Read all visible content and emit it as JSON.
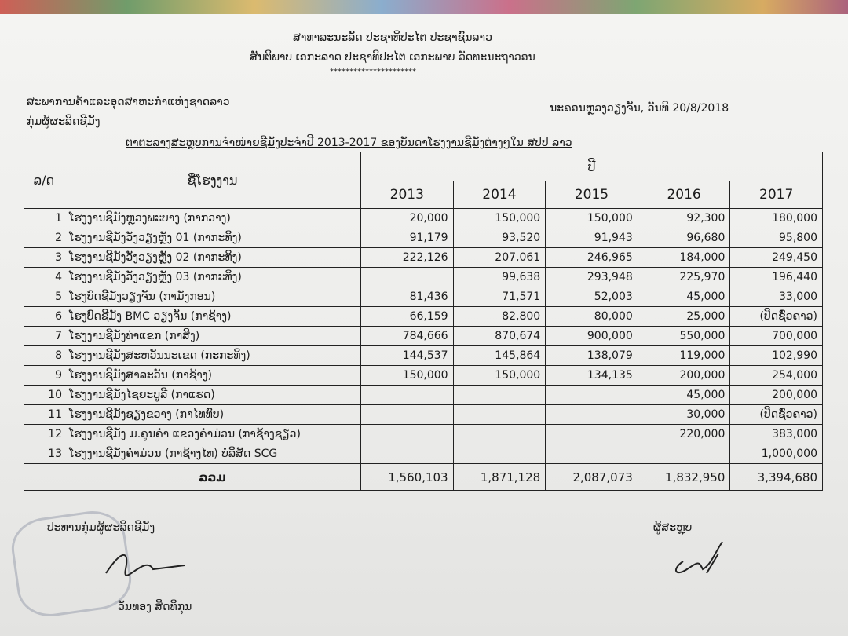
{
  "header": {
    "line1": "ສາທາລະນະລັດ ປະຊາທິປະໄຕ ປະຊາຊົນລາວ",
    "line2": "ສັນຕິພາບ ເອກະລາດ ປະຊາທິປະໄຕ ເອກະພາບ ວັດທະນະຖາວອນ",
    "stars": "**********************",
    "org1": "ສະພາການຄ້າແລະອຸດສາຫະກຳແຫ່ງຊາດລາວ",
    "org2": "ກຸ່ມຜູ້ຜະລິດຊີມັງ",
    "date": "ນະຄອນຫຼວງວຽງຈັນ, ວັນທີ 20/8/2018",
    "title": "ຕາຕະລາງສະຫຼຸບການຈຳໜ່າຍຊີມັງປະຈຳປີ 2013-2017 ຂອງບັນດາໂຮງງານຊີມັງຕ່າງໆໃນ ສປປ ລາວ"
  },
  "table": {
    "col_no": "ລ/ດ",
    "col_name": "ຊື່ໂຮງງານ",
    "col_year": "ປີ",
    "years": [
      "2013",
      "2014",
      "2015",
      "2016",
      "2017"
    ],
    "rows": [
      {
        "no": "1",
        "name": "ໂຮງງານຊີມັງຫຼວງພະບາງ (ກາກວາງ)",
        "v": [
          "20,000",
          "150,000",
          "150,000",
          "92,300",
          "180,000"
        ]
      },
      {
        "no": "2",
        "name": "ໂຮງງານຊີມັງວັງວຽງຫຼັງ 01 (ກາກະທິງ)",
        "v": [
          "91,179",
          "93,520",
          "91,943",
          "96,680",
          "95,800"
        ]
      },
      {
        "no": "3",
        "name": "ໂຮງງານຊີມັງວັງວຽງຫຼັງ 02 (ກາກະທິງ)",
        "v": [
          "222,126",
          "207,061",
          "246,965",
          "184,000",
          "249,450"
        ]
      },
      {
        "no": "4",
        "name": "ໂຮງງານຊີມັງວັງວຽງຫຼັງ 03 (ກາກະທິງ)",
        "v": [
          "",
          "99,638",
          "293,948",
          "225,970",
          "196,440"
        ]
      },
      {
        "no": "5",
        "name": "ໂຮງບົດຊີມັງວຽງຈັນ (ກາມັງກອນ)",
        "v": [
          "81,436",
          "71,571",
          "52,003",
          "45,000",
          "33,000"
        ]
      },
      {
        "no": "6",
        "name": "ໂຮງບົດຊີມັງ BMC ວຽງຈັນ (ກາຊ້າງ)",
        "v": [
          "66,159",
          "82,800",
          "80,000",
          "25,000",
          "(ປິດຊົ່ວຄາວ)"
        ]
      },
      {
        "no": "7",
        "name": "ໂຮງງານຊີມັງທ່າແຂກ (ກາສິງ)",
        "v": [
          "784,666",
          "870,674",
          "900,000",
          "550,000",
          "700,000"
        ]
      },
      {
        "no": "8",
        "name": "ໂຮງງານຊີມັງສະຫວັນນະເຂດ (ກະກະທິງ)",
        "v": [
          "144,537",
          "145,864",
          "138,079",
          "119,000",
          "102,990"
        ]
      },
      {
        "no": "9",
        "name": "ໂຮງງານຊີມັງສາລະວັນ (ກາຊ້າງ)",
        "v": [
          "150,000",
          "150,000",
          "134,135",
          "200,000",
          "254,000"
        ]
      },
      {
        "no": "10",
        "name": "ໂຮງງານຊີມັງໄຊຍະບູລີ (ກາແຮດ)",
        "v": [
          "",
          "",
          "",
          "45,000",
          "200,000"
        ]
      },
      {
        "no": "11",
        "name": "ໂຮງງານຊີມັງຊຽງຂວາງ (ກາໄທທົບ)",
        "v": [
          "",
          "",
          "",
          "30,000",
          "(ປິດຊົ່ວຄາວ)"
        ]
      },
      {
        "no": "12",
        "name": "ໂຮງງານຊີມັງ ມ.ຄູນຄຳ ແຂວງຄຳມ່ວນ (ກາຊ້າງຊຽວ)",
        "v": [
          "",
          "",
          "",
          "220,000",
          "383,000"
        ]
      },
      {
        "no": "13",
        "name": "ໂຮງງານຊີມັງຄຳມ່ວນ (ກາຊ້າງໄທ) ບໍລິສັດ SCG",
        "v": [
          "",
          "",
          "",
          "",
          "1,000,000"
        ]
      }
    ],
    "total_label": "ລວມ",
    "totals": [
      "1,560,103",
      "1,871,128",
      "2,087,073",
      "1,832,950",
      "3,394,680"
    ]
  },
  "footer": {
    "left_title": "ປະທານກຸ່ມຜູ້ຜະລິດຊີມັງ",
    "left_name": "ວັນທອງ ສິດທິກຸນ",
    "right_title": "ຜູ້ສະຫຼຸບ",
    "stamp_text": "ກຸ່ມຜູ້ຜະລິດຊີມັງ"
  }
}
